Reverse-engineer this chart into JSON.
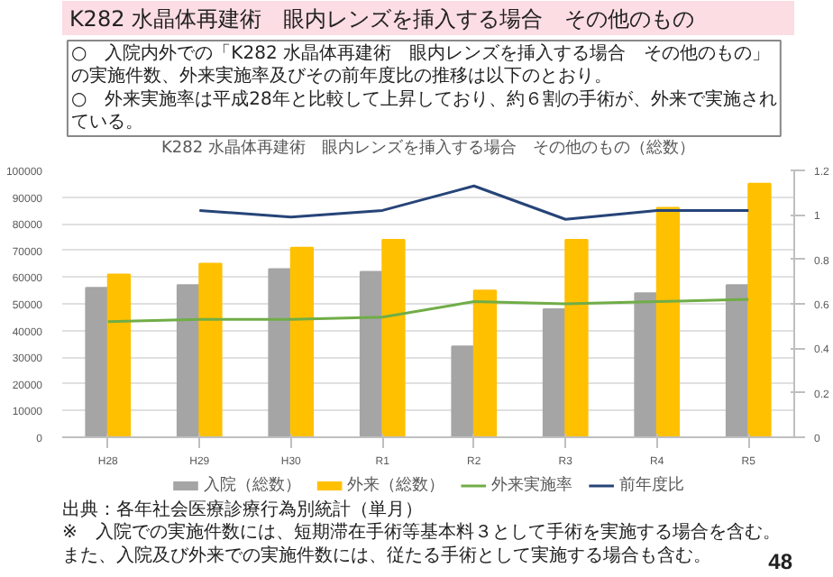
{
  "chart_data": {
    "type": "bar",
    "title": "K282 水晶体再建術　眼内レンズを挿入する場合　その他のもの",
    "subtitle": "K282 水晶体再建術　眼内レンズを挿入する場合　その他のもの（総数）",
    "categories": [
      "H28",
      "H29",
      "H30",
      "R1",
      "R2",
      "R3",
      "R4",
      "R5"
    ],
    "series": [
      {
        "name": "入院（総数）",
        "color": "#a5a5a5",
        "values": [
          56000,
          57000,
          63000,
          62000,
          34000,
          48000,
          54000,
          57000
        ]
      },
      {
        "name": "外来（総数）",
        "color": "#ffc000",
        "values": [
          61000,
          65000,
          71000,
          74000,
          55000,
          74000,
          86000,
          95000
        ]
      },
      {
        "name": "外来実施率",
        "type": "line",
        "axis": "y2",
        "color": "#70ad47",
        "values": [
          0.52,
          0.53,
          0.53,
          0.54,
          0.61,
          0.6,
          0.61,
          0.62
        ]
      },
      {
        "name": "前年度比",
        "type": "line",
        "axis": "y2",
        "color": "#264478",
        "values": [
          null,
          1.02,
          0.99,
          1.02,
          1.13,
          0.98,
          1.02,
          1.02
        ]
      }
    ],
    "ylim": [
      0,
      100000
    ],
    "yticks": [
      0,
      10000,
      20000,
      30000,
      40000,
      50000,
      60000,
      70000,
      80000,
      90000,
      100000
    ],
    "y2lim": [
      0,
      1.2
    ],
    "y2ticks": [
      0,
      0.2,
      0.4,
      0.6,
      0.8,
      1,
      1.2
    ],
    "grid": "y",
    "legend": "bottom",
    "annotations": [
      "○　入院内外での「K282 水晶体再建術　眼内レンズを挿入する場合　その他のもの」の実施件数、外来実施率及びその前年度比の推移は以下のとおり。",
      "○　外来実施率は平成28年と比較して上昇しており、約６割の手術が、外来で実施されている。",
      "出典：各年社会医療診療行為別統計（単月）",
      "※　入院での実施件数には、短期滞在手術等基本料３として手術を実施する場合を含む。また、入院及び外来での実施件数には、従たる手術として実施する場合も含む。",
      "48"
    ]
  }
}
